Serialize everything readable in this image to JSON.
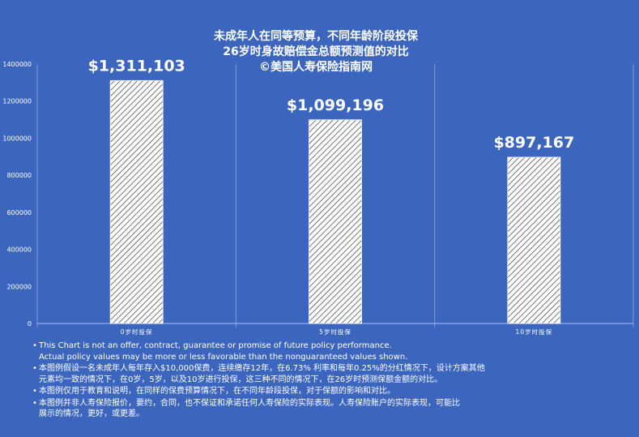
{
  "title": {
    "line1": "未成年人在同等预算，不同年龄阶段投保",
    "line2": "26岁时身故赔偿金总额预测值的对比",
    "line3": "©美国人寿保险指南网"
  },
  "chart_data": {
    "type": "bar",
    "title": "未成年人在同等预算，不同年龄阶段投保 26岁时身故赔偿金总额预测值的对比",
    "categories": [
      "0岁时投保",
      "5岁时投保",
      "10岁时投保"
    ],
    "values": [
      1311103,
      1099196,
      897167
    ],
    "data_labels": [
      "$1,311,103",
      "$1,099,196",
      "$897,167"
    ],
    "ylim": [
      0,
      1400000
    ],
    "yticks": [
      0,
      200000,
      400000,
      600000,
      800000,
      1000000,
      1200000,
      1400000
    ],
    "ytick_labels": [
      "0",
      "200000",
      "400000",
      "600000",
      "800000",
      "1000000",
      "1200000",
      "1400000"
    ],
    "grid": "vertical separators between categories",
    "bar_fill": "white with diagonal hatching",
    "xlabel": "",
    "ylabel": ""
  },
  "notes": [
    {
      "bullet": "•",
      "lines": [
        "This Chart is not an offer, contract, guarantee or promise of future policy performance.",
        "Actual policy values may be more or less favorable than the nonguaranteed values shown."
      ]
    },
    {
      "bullet": "•",
      "lines": [
        "本图例假设一名未成年人每年存入$10,000保费，连续缴存12年，在6.73% 利率和每年0.25%的分红情况下，设计方案其他",
        "元素均一致的情况下，在0岁，5岁，以及10岁进行投保，这三种不同的情况下，在26岁时预测保额金额的对比。"
      ]
    },
    {
      "bullet": "•",
      "lines": [
        "本图例仅用于教育和说明，在同样的保费预算情况下，在不同年龄段投保，对于保额的影响和对比。"
      ]
    },
    {
      "bullet": "•",
      "lines": [
        "本图例并非人寿保险报价，要约，合同，也不保证和承诺任何人寿保险的实际表现。人寿保险账户的实际表现，可能比",
        "展示的情况，更好，或更差。"
      ]
    }
  ]
}
